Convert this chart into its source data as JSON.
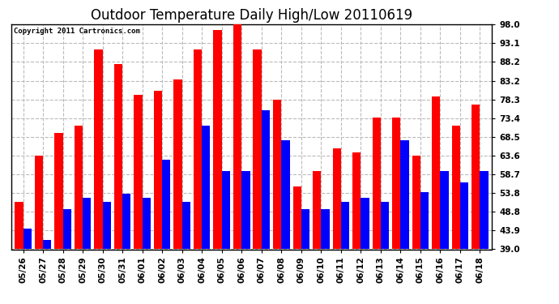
{
  "title": "Outdoor Temperature Daily High/Low 20110619",
  "copyright": "Copyright 2011 Cartronics.com",
  "labels": [
    "05/26",
    "05/27",
    "05/28",
    "05/29",
    "05/30",
    "05/31",
    "06/01",
    "06/02",
    "06/03",
    "06/04",
    "06/05",
    "06/06",
    "06/07",
    "06/08",
    "06/09",
    "06/10",
    "06/11",
    "06/12",
    "06/13",
    "06/14",
    "06/15",
    "06/16",
    "06/17",
    "06/18"
  ],
  "highs": [
    51.5,
    63.5,
    69.5,
    71.5,
    91.5,
    87.5,
    79.5,
    80.5,
    83.5,
    91.5,
    96.5,
    98.0,
    91.5,
    78.3,
    55.5,
    59.5,
    65.5,
    64.5,
    73.5,
    73.5,
    63.5,
    79.0,
    71.5,
    77.0
  ],
  "lows": [
    44.5,
    41.5,
    49.5,
    52.5,
    51.5,
    53.5,
    52.5,
    62.5,
    51.5,
    71.5,
    59.5,
    59.5,
    75.5,
    67.5,
    49.5,
    49.5,
    51.5,
    52.5,
    51.5,
    67.5,
    54.0,
    59.5,
    56.5,
    59.5
  ],
  "high_color": "#ff0000",
  "low_color": "#0000ff",
  "bg_color": "#ffffff",
  "ylim_min": 39.0,
  "ylim_max": 98.0,
  "yticks": [
    39.0,
    43.9,
    48.8,
    53.8,
    58.7,
    63.6,
    68.5,
    73.4,
    78.3,
    83.2,
    88.2,
    93.1,
    98.0
  ],
  "grid_color": "#bbbbbb",
  "title_fontsize": 12,
  "tick_fontsize": 7.5,
  "bar_width": 0.42
}
